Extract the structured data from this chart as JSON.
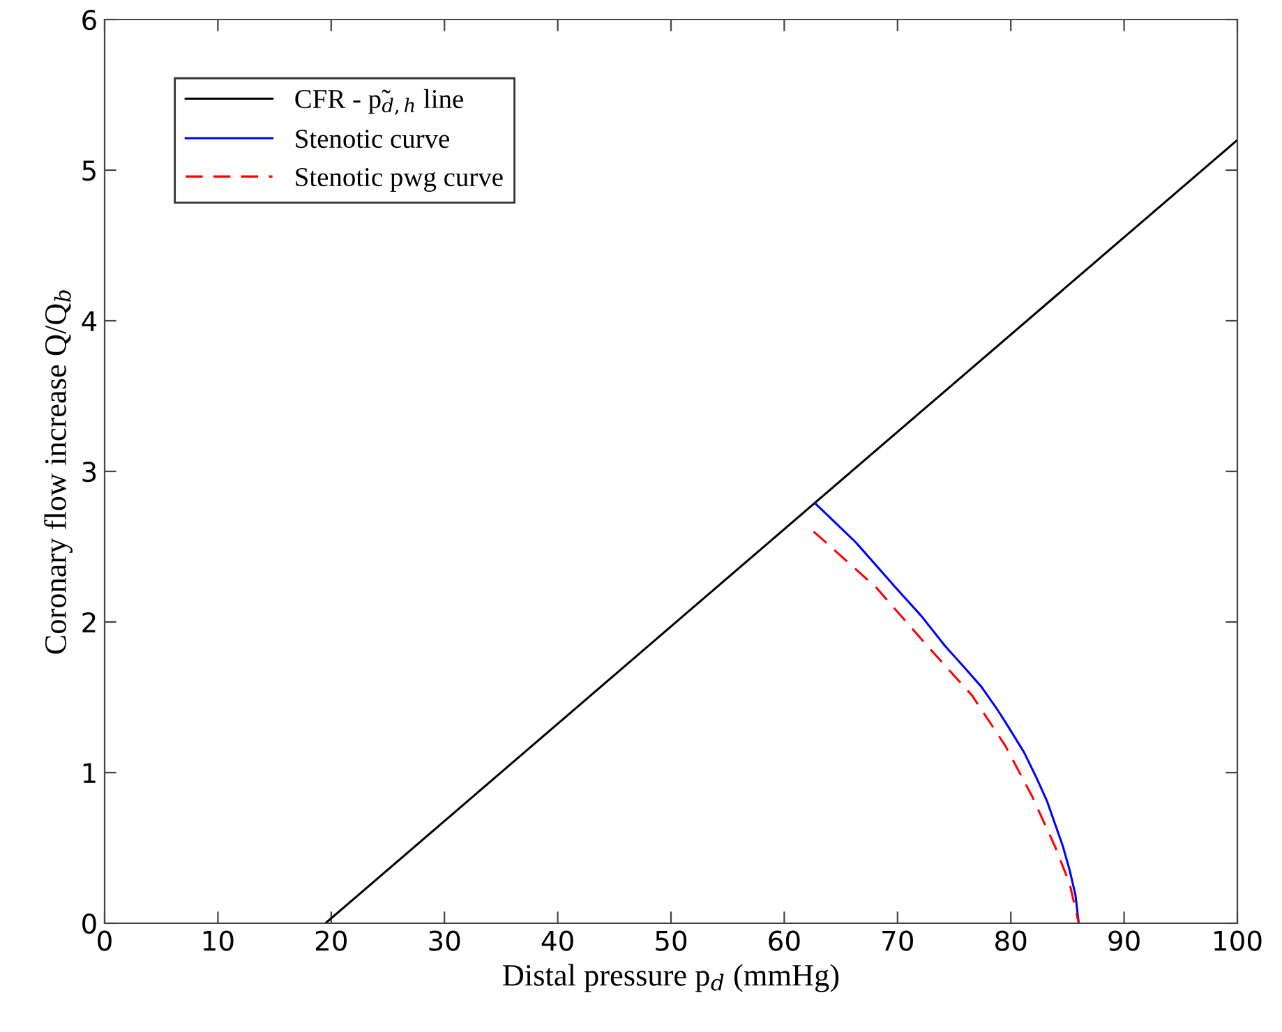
{
  "chart_data": {
    "type": "line",
    "xlabel": "Distal pressure p$_{d}$ (mmHg)",
    "ylabel": "Coronary flow increase Q/Q$_{b}$",
    "xlim": [
      0,
      100
    ],
    "ylim": [
      0,
      6
    ],
    "xticks": [
      0,
      10,
      20,
      30,
      40,
      50,
      60,
      70,
      80,
      90,
      100
    ],
    "yticks": [
      0,
      1,
      2,
      3,
      4,
      5,
      6
    ],
    "grid": false,
    "legend": "top left",
    "marker": "none",
    "series": [
      {
        "name": "CFR - p̃$_{d,h}$ line",
        "color": "#000000",
        "line_style": "solid",
        "x": [
          19.5,
          100
        ],
        "values": [
          0,
          5.2
        ]
      },
      {
        "name": "Stenotic curve",
        "color": "#0000ff",
        "line_style": "solid",
        "x": [
          62.7,
          66.3,
          69.7,
          72.1,
          74.2,
          76.0,
          77.4,
          78.8,
          79.9,
          81.2,
          82.3,
          83.2,
          83.9,
          84.6,
          85.2,
          85.7,
          86.0
        ],
        "values": [
          2.79,
          2.53,
          2.24,
          2.04,
          1.84,
          1.69,
          1.57,
          1.42,
          1.29,
          1.13,
          0.96,
          0.81,
          0.66,
          0.51,
          0.35,
          0.19,
          0
        ]
      },
      {
        "name": "Stenotic pwg curve",
        "color": "#ff0000",
        "line_style": "dashed",
        "x": [
          62.6,
          68.1,
          73.0,
          76.6,
          79.5,
          81.9,
          83.9,
          85.2,
          86.0
        ],
        "values": [
          2.6,
          2.23,
          1.81,
          1.51,
          1.18,
          0.84,
          0.51,
          0.26,
          0
        ]
      }
    ]
  }
}
